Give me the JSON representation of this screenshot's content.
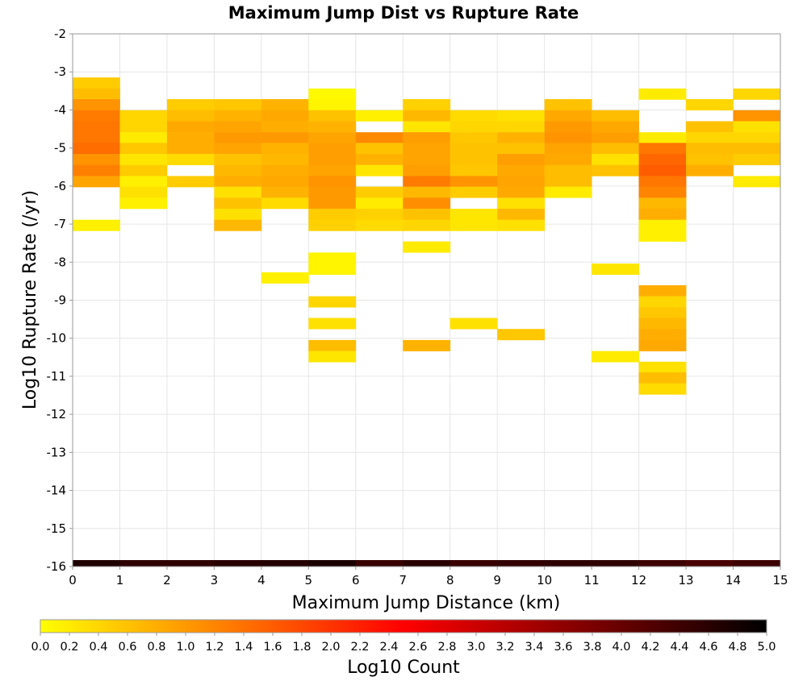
{
  "chart_data": {
    "type": "heatmap",
    "title": "Maximum Jump Dist vs Rupture Rate",
    "xlabel": "Maximum Jump Distance (km)",
    "ylabel": "Log10 Rupture Rate (/yr)",
    "xlim": [
      0,
      15
    ],
    "ylim": [
      -16,
      -2
    ],
    "grid": true,
    "x_ticks": [
      "0",
      "1",
      "2",
      "3",
      "4",
      "5",
      "6",
      "7",
      "8",
      "9",
      "10",
      "11",
      "12",
      "13",
      "14",
      "15"
    ],
    "y_ticks": [
      "-2",
      "-3",
      "-4",
      "-5",
      "-6",
      "-7",
      "-8",
      "-9",
      "-10",
      "-11",
      "-12",
      "-13",
      "-14",
      "-15",
      "-16"
    ],
    "x_bin_width": 1,
    "y_bin_height": 0.2875,
    "cells": [
      {
        "x": 0,
        "y": -3.29,
        "v": 0.5
      },
      {
        "x": 0,
        "y": -3.58,
        "v": 0.65
      },
      {
        "x": 0,
        "y": -3.86,
        "v": 1.05
      },
      {
        "x": 0,
        "y": -4.15,
        "v": 1.3
      },
      {
        "x": 0,
        "y": -4.44,
        "v": 1.35
      },
      {
        "x": 0,
        "y": -4.73,
        "v": 1.35
      },
      {
        "x": 0,
        "y": -5.01,
        "v": 1.45
      },
      {
        "x": 0,
        "y": -5.3,
        "v": 1.05
      },
      {
        "x": 0,
        "y": -5.59,
        "v": 1.25
      },
      {
        "x": 0,
        "y": -5.88,
        "v": 0.9
      },
      {
        "x": 0,
        "y": -7.03,
        "v": 0.15
      },
      {
        "x": 1,
        "y": -4.15,
        "v": 0.4
      },
      {
        "x": 1,
        "y": -4.44,
        "v": 0.4
      },
      {
        "x": 1,
        "y": -4.73,
        "v": 0.2
      },
      {
        "x": 1,
        "y": -5.01,
        "v": 0.55
      },
      {
        "x": 1,
        "y": -5.3,
        "v": 0.25
      },
      {
        "x": 1,
        "y": -5.59,
        "v": 0.5
      },
      {
        "x": 1,
        "y": -5.88,
        "v": 0.15
      },
      {
        "x": 1,
        "y": -6.16,
        "v": 0.3
      },
      {
        "x": 1,
        "y": -6.45,
        "v": 0.15
      },
      {
        "x": 2,
        "y": -3.86,
        "v": 0.5
      },
      {
        "x": 2,
        "y": -4.15,
        "v": 0.65
      },
      {
        "x": 2,
        "y": -4.44,
        "v": 0.85
      },
      {
        "x": 2,
        "y": -4.73,
        "v": 0.8
      },
      {
        "x": 2,
        "y": -5.01,
        "v": 0.8
      },
      {
        "x": 2,
        "y": -5.3,
        "v": 0.35
      },
      {
        "x": 2,
        "y": -5.88,
        "v": 0.5
      },
      {
        "x": 3,
        "y": -3.86,
        "v": 0.55
      },
      {
        "x": 3,
        "y": -4.15,
        "v": 0.75
      },
      {
        "x": 3,
        "y": -4.44,
        "v": 0.9
      },
      {
        "x": 3,
        "y": -4.73,
        "v": 1.0
      },
      {
        "x": 3,
        "y": -5.01,
        "v": 0.9
      },
      {
        "x": 3,
        "y": -5.3,
        "v": 0.6
      },
      {
        "x": 3,
        "y": -5.59,
        "v": 0.7
      },
      {
        "x": 3,
        "y": -5.88,
        "v": 0.8
      },
      {
        "x": 3,
        "y": -6.16,
        "v": 0.3
      },
      {
        "x": 3,
        "y": -6.45,
        "v": 0.6
      },
      {
        "x": 3,
        "y": -6.74,
        "v": 0.3
      },
      {
        "x": 3,
        "y": -7.03,
        "v": 0.7
      },
      {
        "x": 4,
        "y": -3.86,
        "v": 0.75
      },
      {
        "x": 4,
        "y": -4.15,
        "v": 0.85
      },
      {
        "x": 4,
        "y": -4.44,
        "v": 0.8
      },
      {
        "x": 4,
        "y": -4.73,
        "v": 1.0
      },
      {
        "x": 4,
        "y": -5.01,
        "v": 0.75
      },
      {
        "x": 4,
        "y": -5.3,
        "v": 0.7
      },
      {
        "x": 4,
        "y": -5.59,
        "v": 0.8
      },
      {
        "x": 4,
        "y": -5.88,
        "v": 0.85
      },
      {
        "x": 4,
        "y": -6.16,
        "v": 0.75
      },
      {
        "x": 4,
        "y": -6.45,
        "v": 0.35
      },
      {
        "x": 4,
        "y": -8.41,
        "v": 0.15
      },
      {
        "x": 5,
        "y": -3.58,
        "v": 0.05
      },
      {
        "x": 5,
        "y": -3.86,
        "v": 0.1
      },
      {
        "x": 5,
        "y": -4.15,
        "v": 0.6
      },
      {
        "x": 5,
        "y": -4.44,
        "v": 0.75
      },
      {
        "x": 5,
        "y": -4.73,
        "v": 0.9
      },
      {
        "x": 5,
        "y": -5.01,
        "v": 0.95
      },
      {
        "x": 5,
        "y": -5.3,
        "v": 0.95
      },
      {
        "x": 5,
        "y": -5.59,
        "v": 0.9
      },
      {
        "x": 5,
        "y": -5.88,
        "v": 1.05
      },
      {
        "x": 5,
        "y": -6.16,
        "v": 1.0
      },
      {
        "x": 5,
        "y": -6.45,
        "v": 1.0
      },
      {
        "x": 5,
        "y": -6.74,
        "v": 0.5
      },
      {
        "x": 5,
        "y": -7.03,
        "v": 0.45
      },
      {
        "x": 5,
        "y": -7.89,
        "v": 0.1
      },
      {
        "x": 5,
        "y": -8.18,
        "v": 0.1
      },
      {
        "x": 5,
        "y": -9.04,
        "v": 0.4
      },
      {
        "x": 5,
        "y": -9.61,
        "v": 0.3
      },
      {
        "x": 5,
        "y": -10.19,
        "v": 0.65
      },
      {
        "x": 5,
        "y": -10.48,
        "v": 0.25
      },
      {
        "x": 6,
        "y": -4.15,
        "v": 0.15
      },
      {
        "x": 6,
        "y": -4.73,
        "v": 1.15
      },
      {
        "x": 6,
        "y": -5.01,
        "v": 0.6
      },
      {
        "x": 6,
        "y": -5.3,
        "v": 0.75
      },
      {
        "x": 6,
        "y": -5.59,
        "v": 0.25
      },
      {
        "x": 6,
        "y": -6.16,
        "v": 0.5
      },
      {
        "x": 6,
        "y": -6.45,
        "v": 0.2
      },
      {
        "x": 6,
        "y": -6.74,
        "v": 0.45
      },
      {
        "x": 6,
        "y": -7.03,
        "v": 0.35
      },
      {
        "x": 7,
        "y": -3.86,
        "v": 0.45
      },
      {
        "x": 7,
        "y": -4.15,
        "v": 0.7
      },
      {
        "x": 7,
        "y": -4.44,
        "v": 0.25
      },
      {
        "x": 7,
        "y": -4.73,
        "v": 0.95
      },
      {
        "x": 7,
        "y": -5.01,
        "v": 0.9
      },
      {
        "x": 7,
        "y": -5.3,
        "v": 0.9
      },
      {
        "x": 7,
        "y": -5.59,
        "v": 0.95
      },
      {
        "x": 7,
        "y": -5.88,
        "v": 1.3
      },
      {
        "x": 7,
        "y": -6.16,
        "v": 0.7
      },
      {
        "x": 7,
        "y": -6.45,
        "v": 1.1
      },
      {
        "x": 7,
        "y": -6.74,
        "v": 0.6
      },
      {
        "x": 7,
        "y": -7.03,
        "v": 0.4
      },
      {
        "x": 7,
        "y": -7.6,
        "v": 0.2
      },
      {
        "x": 7,
        "y": -10.19,
        "v": 0.75
      },
      {
        "x": 8,
        "y": -4.15,
        "v": 0.35
      },
      {
        "x": 8,
        "y": -4.44,
        "v": 0.4
      },
      {
        "x": 8,
        "y": -4.73,
        "v": 0.55
      },
      {
        "x": 8,
        "y": -5.01,
        "v": 0.6
      },
      {
        "x": 8,
        "y": -5.3,
        "v": 0.6
      },
      {
        "x": 8,
        "y": -5.59,
        "v": 0.55
      },
      {
        "x": 8,
        "y": -5.88,
        "v": 1.05
      },
      {
        "x": 8,
        "y": -6.16,
        "v": 0.5
      },
      {
        "x": 8,
        "y": -6.74,
        "v": 0.25
      },
      {
        "x": 8,
        "y": -7.03,
        "v": 0.25
      },
      {
        "x": 8,
        "y": -9.61,
        "v": 0.3
      },
      {
        "x": 9,
        "y": -4.15,
        "v": 0.3
      },
      {
        "x": 9,
        "y": -4.44,
        "v": 0.4
      },
      {
        "x": 9,
        "y": -4.73,
        "v": 0.75
      },
      {
        "x": 9,
        "y": -5.01,
        "v": 0.6
      },
      {
        "x": 9,
        "y": -5.3,
        "v": 0.95
      },
      {
        "x": 9,
        "y": -5.59,
        "v": 0.85
      },
      {
        "x": 9,
        "y": -5.88,
        "v": 0.9
      },
      {
        "x": 9,
        "y": -6.16,
        "v": 0.85
      },
      {
        "x": 9,
        "y": -6.45,
        "v": 0.3
      },
      {
        "x": 9,
        "y": -6.74,
        "v": 0.7
      },
      {
        "x": 9,
        "y": -7.03,
        "v": 0.3
      },
      {
        "x": 9,
        "y": -9.9,
        "v": 0.55
      },
      {
        "x": 10,
        "y": -3.86,
        "v": 0.6
      },
      {
        "x": 10,
        "y": -4.15,
        "v": 0.85
      },
      {
        "x": 10,
        "y": -4.44,
        "v": 1.0
      },
      {
        "x": 10,
        "y": -4.73,
        "v": 1.05
      },
      {
        "x": 10,
        "y": -5.01,
        "v": 0.9
      },
      {
        "x": 10,
        "y": -5.3,
        "v": 0.85
      },
      {
        "x": 10,
        "y": -5.59,
        "v": 0.65
      },
      {
        "x": 10,
        "y": -5.88,
        "v": 0.65
      },
      {
        "x": 10,
        "y": -6.16,
        "v": 0.2
      },
      {
        "x": 11,
        "y": -4.15,
        "v": 0.65
      },
      {
        "x": 11,
        "y": -4.44,
        "v": 0.85
      },
      {
        "x": 11,
        "y": -4.73,
        "v": 0.95
      },
      {
        "x": 11,
        "y": -5.01,
        "v": 0.65
      },
      {
        "x": 11,
        "y": -5.3,
        "v": 0.3
      },
      {
        "x": 11,
        "y": -5.59,
        "v": 0.6
      },
      {
        "x": 11,
        "y": -8.18,
        "v": 0.25
      },
      {
        "x": 11,
        "y": -10.48,
        "v": 0.2
      },
      {
        "x": 12,
        "y": -3.58,
        "v": 0.2
      },
      {
        "x": 12,
        "y": -4.73,
        "v": 0.2
      },
      {
        "x": 12,
        "y": -5.01,
        "v": 1.35
      },
      {
        "x": 12,
        "y": -5.3,
        "v": 1.5
      },
      {
        "x": 12,
        "y": -5.59,
        "v": 1.6
      },
      {
        "x": 12,
        "y": -5.88,
        "v": 1.35
      },
      {
        "x": 12,
        "y": -6.16,
        "v": 1.2
      },
      {
        "x": 12,
        "y": -6.45,
        "v": 0.7
      },
      {
        "x": 12,
        "y": -6.74,
        "v": 0.8
      },
      {
        "x": 12,
        "y": -7.03,
        "v": 0.15
      },
      {
        "x": 12,
        "y": -7.31,
        "v": 0.15
      },
      {
        "x": 12,
        "y": -8.75,
        "v": 0.8
      },
      {
        "x": 12,
        "y": -9.04,
        "v": 0.4
      },
      {
        "x": 12,
        "y": -9.33,
        "v": 0.55
      },
      {
        "x": 12,
        "y": -9.61,
        "v": 0.7
      },
      {
        "x": 12,
        "y": -9.9,
        "v": 0.8
      },
      {
        "x": 12,
        "y": -10.19,
        "v": 0.85
      },
      {
        "x": 12,
        "y": -10.76,
        "v": 0.3
      },
      {
        "x": 12,
        "y": -11.04,
        "v": 0.65
      },
      {
        "x": 12,
        "y": -11.33,
        "v": 0.35
      },
      {
        "x": 13,
        "y": -3.86,
        "v": 0.4
      },
      {
        "x": 13,
        "y": -4.44,
        "v": 0.6
      },
      {
        "x": 13,
        "y": -4.73,
        "v": 0.4
      },
      {
        "x": 13,
        "y": -5.01,
        "v": 0.65
      },
      {
        "x": 13,
        "y": -5.3,
        "v": 0.6
      },
      {
        "x": 13,
        "y": -5.59,
        "v": 0.8
      },
      {
        "x": 14,
        "y": -3.58,
        "v": 0.4
      },
      {
        "x": 14,
        "y": -4.15,
        "v": 1.05
      },
      {
        "x": 14,
        "y": -4.44,
        "v": 0.3
      },
      {
        "x": 14,
        "y": -4.73,
        "v": 0.4
      },
      {
        "x": 14,
        "y": -5.01,
        "v": 0.65
      },
      {
        "x": 14,
        "y": -5.3,
        "v": 0.5
      },
      {
        "x": 14,
        "y": -5.88,
        "v": 0.2
      },
      {
        "x": 0,
        "y": -16.0,
        "v": 4.7
      },
      {
        "x": 1,
        "y": -16.0,
        "v": 4.55
      },
      {
        "x": 2,
        "y": -16.0,
        "v": 4.55
      },
      {
        "x": 3,
        "y": -16.0,
        "v": 4.6
      },
      {
        "x": 4,
        "y": -16.0,
        "v": 4.65
      },
      {
        "x": 5,
        "y": -16.0,
        "v": 4.75
      },
      {
        "x": 6,
        "y": -16.0,
        "v": 4.45
      },
      {
        "x": 7,
        "y": -16.0,
        "v": 4.6
      },
      {
        "x": 8,
        "y": -16.0,
        "v": 4.45
      },
      {
        "x": 9,
        "y": -16.0,
        "v": 4.5
      },
      {
        "x": 10,
        "y": -16.0,
        "v": 4.55
      },
      {
        "x": 11,
        "y": -16.0,
        "v": 4.55
      },
      {
        "x": 12,
        "y": -16.0,
        "v": 4.4
      },
      {
        "x": 13,
        "y": -16.0,
        "v": 4.3
      },
      {
        "x": 14,
        "y": -16.0,
        "v": 4.4
      }
    ],
    "colorbar": {
      "label": "Log10 Count",
      "min": 0,
      "max": 5,
      "ticks": [
        "0.0",
        "0.2",
        "0.4",
        "0.6",
        "0.8",
        "1.0",
        "1.2",
        "1.4",
        "1.6",
        "1.8",
        "2.0",
        "2.2",
        "2.4",
        "2.6",
        "2.8",
        "3.0",
        "3.2",
        "3.4",
        "3.6",
        "3.8",
        "4.0",
        "4.2",
        "4.4",
        "4.6",
        "4.8",
        "5.0"
      ],
      "colors": [
        "#ffff00",
        "#ff8000",
        "#ff0000",
        "#800000",
        "#000000"
      ]
    }
  }
}
